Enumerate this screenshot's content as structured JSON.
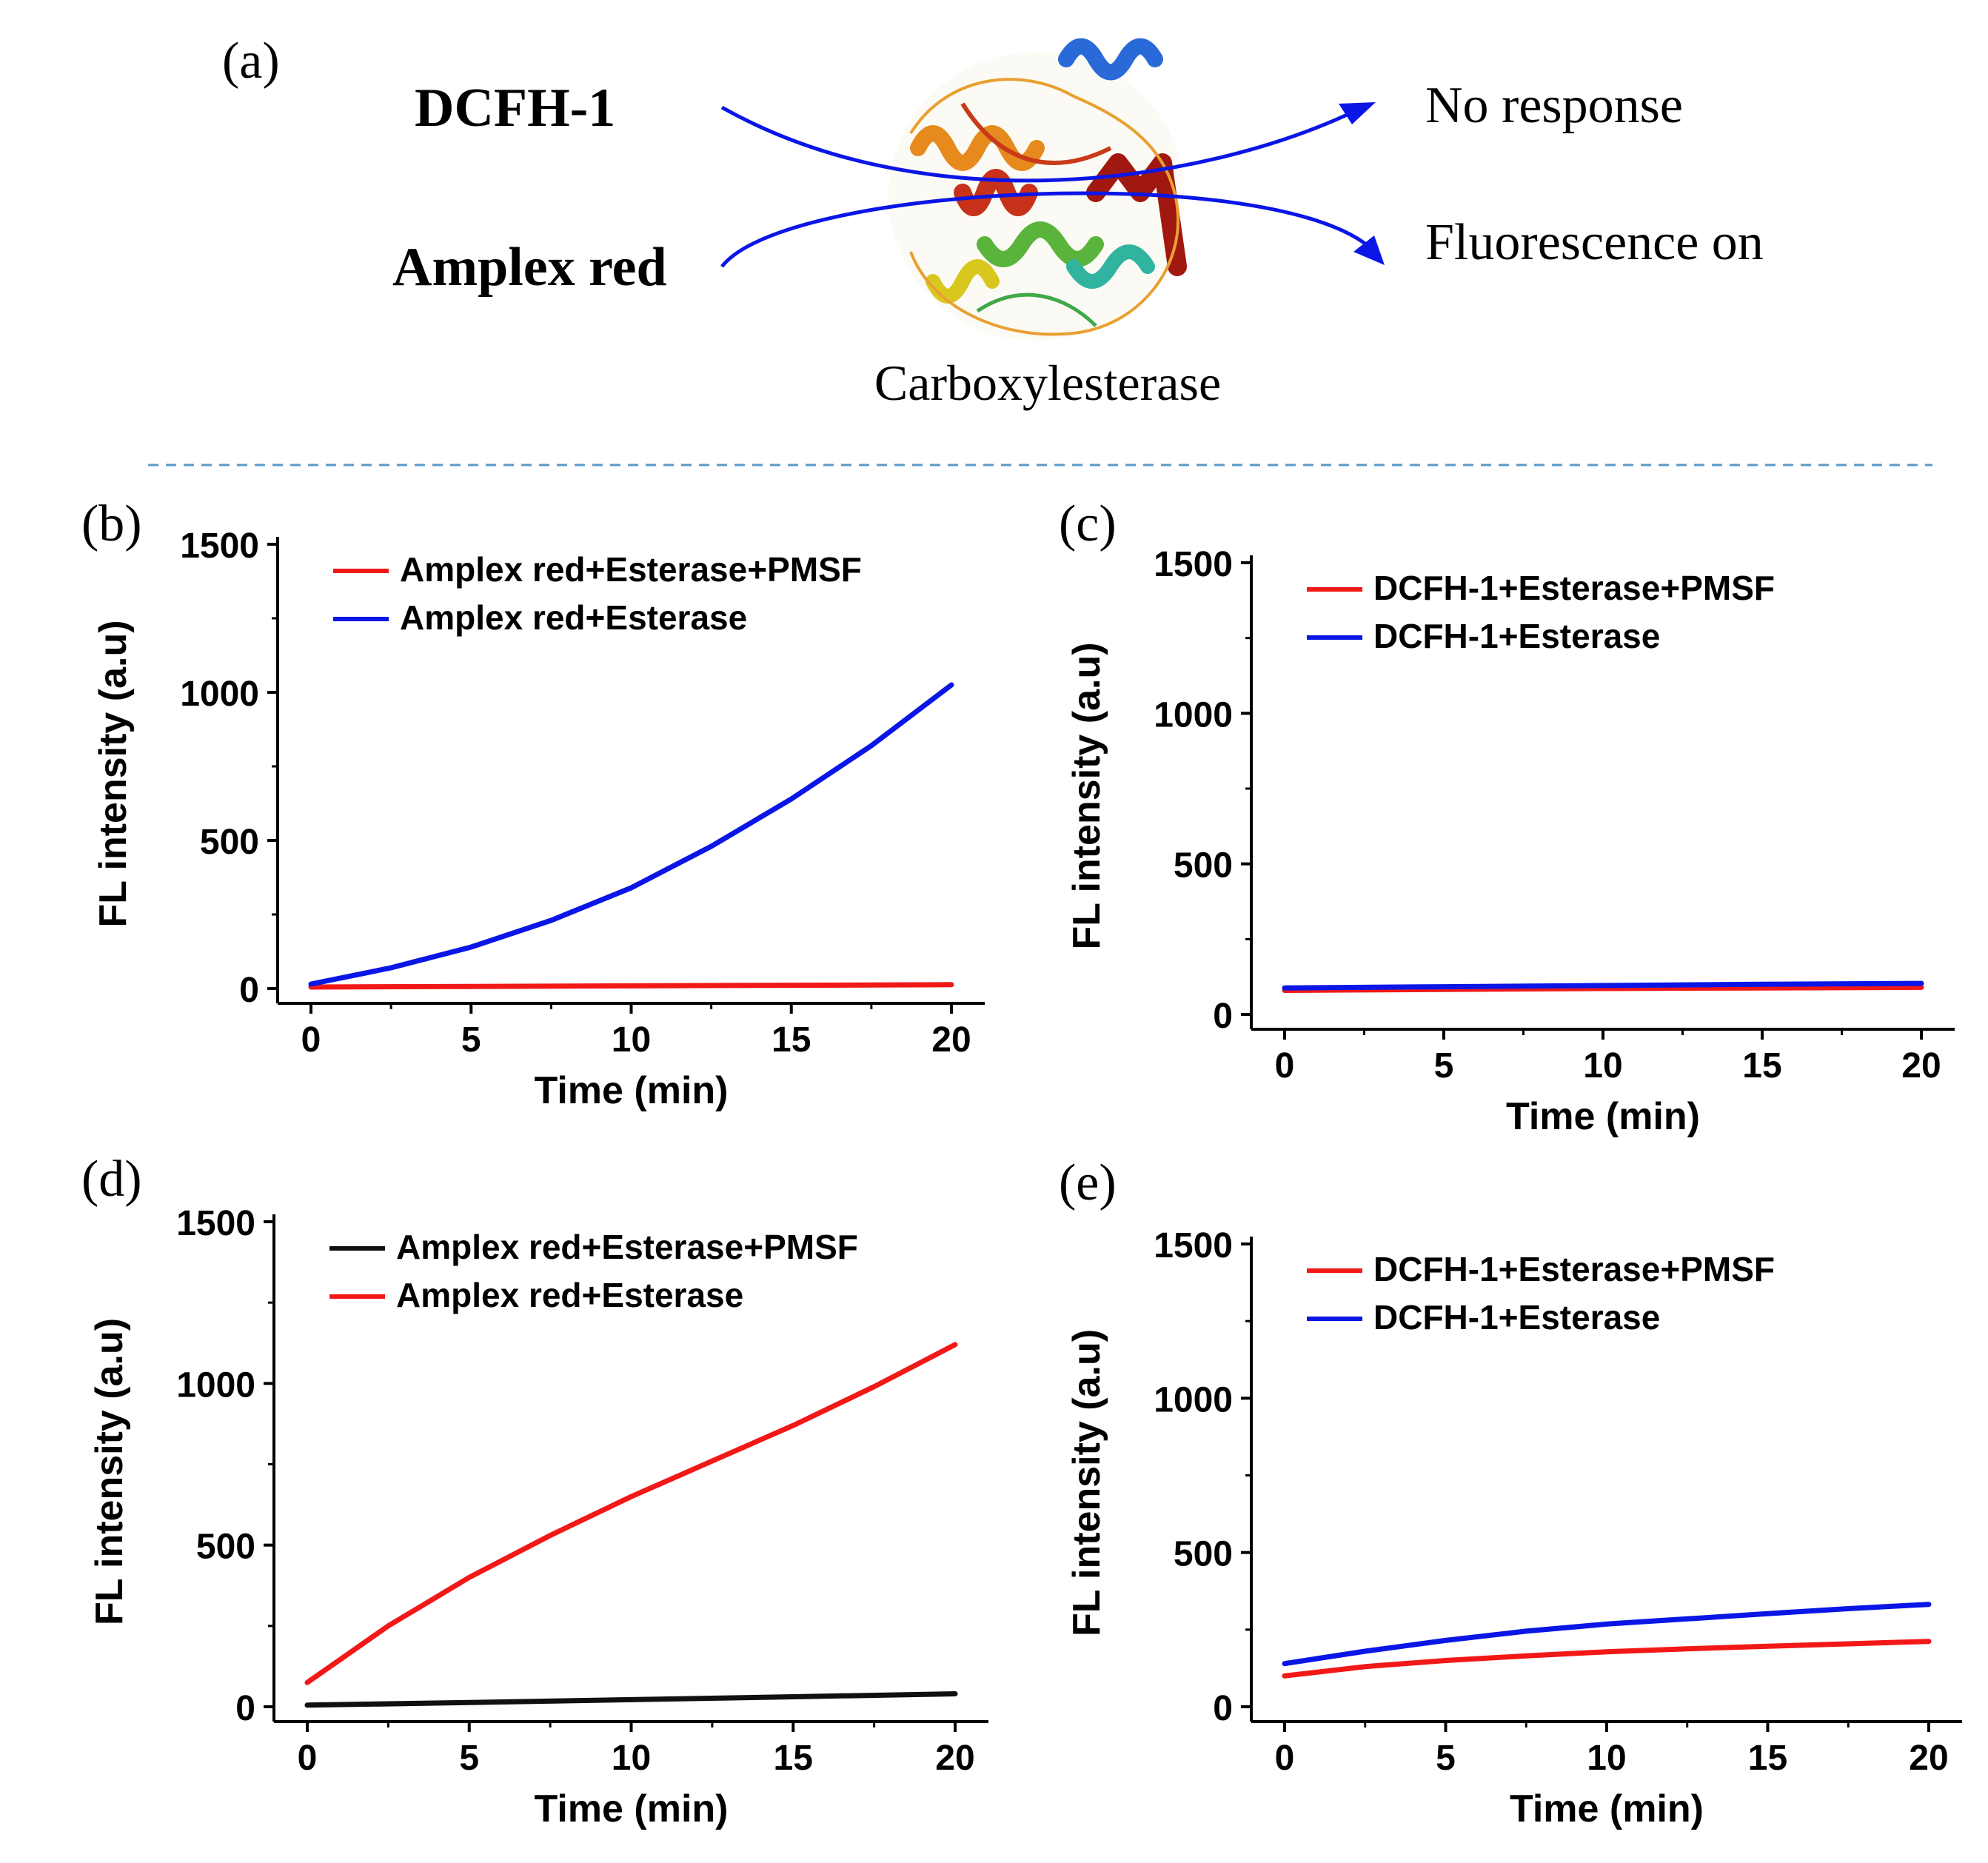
{
  "colors": {
    "blue": "#0a16e6",
    "red": "#f21818",
    "black": "#101010",
    "divider": "#5a9ac8",
    "helix_orange": "#e68a1e",
    "helix_red": "#c8321a",
    "helix_darkred": "#a01810",
    "helix_green": "#5ab43c",
    "helix_blue": "#2a6ad8",
    "helix_teal": "#30b4a0",
    "helix_yellow": "#d8c81e"
  },
  "scheme": {
    "panel_label": "(a)",
    "probe1": "DCFH-1",
    "probe2": "Amplex red",
    "outcome1": "No response",
    "outcome2": "Fluorescence on",
    "enzyme": "Carboxylesterase",
    "protein_icon": "protein-structure-icon",
    "arrow_icon": "curved-arrow-icon"
  },
  "chart_data": [
    {
      "panel": "(b)",
      "type": "line",
      "xlabel": "Time (min)",
      "ylabel": "FL intensity (a.u)",
      "xlim": [
        0,
        20
      ],
      "ylim": [
        0,
        1500
      ],
      "xticks": [
        0,
        5,
        10,
        15,
        20
      ],
      "yticks": [
        0,
        500,
        1000,
        1500
      ],
      "legend_position": "top-left",
      "series": [
        {
          "name": "Amplex red+Esterase+PMSF",
          "color": "red",
          "x": [
            0,
            5,
            10,
            15,
            20
          ],
          "y": [
            5,
            7,
            9,
            11,
            13
          ]
        },
        {
          "name": "Amplex red+Esterase",
          "color": "blue",
          "x": [
            0,
            2.5,
            5,
            7.5,
            10,
            12.5,
            15,
            17.5,
            20
          ],
          "y": [
            15,
            70,
            140,
            230,
            340,
            480,
            640,
            820,
            1025
          ]
        }
      ]
    },
    {
      "panel": "(c)",
      "type": "line",
      "xlabel": "Time (min)",
      "ylabel": "FL intensity (a.u)",
      "xlim": [
        0,
        20
      ],
      "ylim": [
        0,
        1500
      ],
      "xticks": [
        0,
        5,
        10,
        15,
        20
      ],
      "yticks": [
        0,
        500,
        1000,
        1500
      ],
      "legend_position": "top-left",
      "series": [
        {
          "name": "DCFH-1+Esterase+PMSF",
          "color": "red",
          "x": [
            0,
            5,
            10,
            15,
            20
          ],
          "y": [
            80,
            83,
            86,
            88,
            90
          ]
        },
        {
          "name": "DCFH-1+Esterase",
          "color": "blue",
          "x": [
            0,
            5,
            10,
            15,
            20
          ],
          "y": [
            88,
            92,
            96,
            100,
            103
          ]
        }
      ]
    },
    {
      "panel": "(d)",
      "type": "line",
      "xlabel": "Time (min)",
      "ylabel": "FL intensity (a.u)",
      "xlim": [
        0,
        20
      ],
      "ylim": [
        0,
        1500
      ],
      "xticks": [
        0,
        5,
        10,
        15,
        20
      ],
      "yticks": [
        0,
        500,
        1000,
        1500
      ],
      "legend_position": "top-left",
      "series": [
        {
          "name": "Amplex red+Esterase+PMSF",
          "color": "black",
          "x": [
            0,
            5,
            10,
            15,
            20
          ],
          "y": [
            5,
            13,
            22,
            31,
            40
          ]
        },
        {
          "name": "Amplex red+Esterase",
          "color": "red",
          "x": [
            0,
            2.5,
            5,
            7.5,
            10,
            12.5,
            15,
            17.5,
            20
          ],
          "y": [
            75,
            250,
            400,
            530,
            650,
            760,
            870,
            990,
            1120
          ]
        }
      ]
    },
    {
      "panel": "(e)",
      "type": "line",
      "xlabel": "Time (min)",
      "ylabel": "FL intensity (a.u)",
      "xlim": [
        0,
        20
      ],
      "ylim": [
        0,
        1500
      ],
      "xticks": [
        0,
        5,
        10,
        15,
        20
      ],
      "yticks": [
        0,
        500,
        1000,
        1500
      ],
      "legend_position": "top-left",
      "series": [
        {
          "name": "DCFH-1+Esterase+PMSF",
          "color": "red",
          "x": [
            0,
            2.5,
            5,
            7.5,
            10,
            12.5,
            15,
            17.5,
            20
          ],
          "y": [
            100,
            130,
            150,
            165,
            178,
            188,
            196,
            204,
            212
          ]
        },
        {
          "name": "DCFH-1+Esterase",
          "color": "blue",
          "x": [
            0,
            2.5,
            5,
            7.5,
            10,
            12.5,
            15,
            17.5,
            20
          ],
          "y": [
            140,
            180,
            215,
            245,
            268,
            285,
            302,
            318,
            332
          ]
        }
      ]
    }
  ]
}
